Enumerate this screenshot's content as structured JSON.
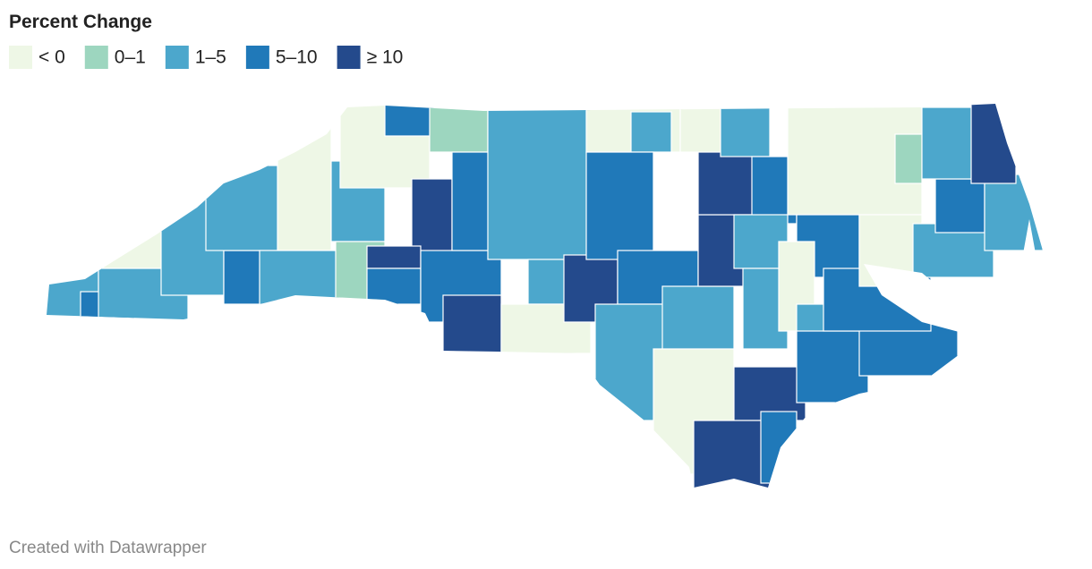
{
  "title": "Percent Change",
  "legend": [
    {
      "label": "< 0",
      "color": "#eef7e6"
    },
    {
      "label": "0–1",
      "color": "#9dd6bf"
    },
    {
      "label": "1–5",
      "color": "#4ca7cc"
    },
    {
      "label": "5–10",
      "color": "#2079b9"
    },
    {
      "label": "≥ 10",
      "color": "#244a8c"
    }
  ],
  "footer": "Created with Datawrapper"
}
